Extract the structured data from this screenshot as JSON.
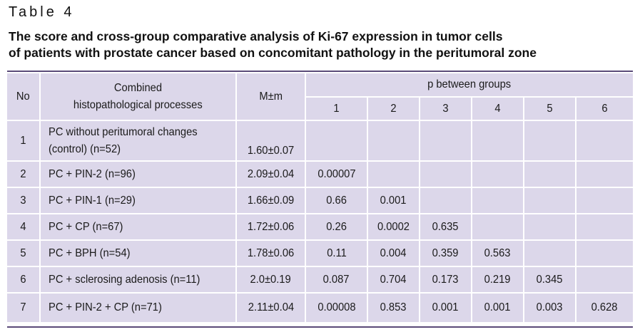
{
  "table_label": "Table 4",
  "title_line1": "The score and cross-group comparative analysis of Ki-67 expression in tumor cells",
  "title_line2": "of patients with prostate cancer based on concomitant pathology in the peritumoral zone",
  "header": {
    "no": "No",
    "processes_line1": "Combined",
    "processes_line2": "histopathological processes",
    "mean": "M±m",
    "p_between": "p between groups",
    "p_cols": [
      "1",
      "2",
      "3",
      "4",
      "5",
      "6"
    ]
  },
  "rows": [
    {
      "no": "1",
      "process_line1": "PC without peritumoral changes",
      "process_line2": "(control) (n=52)",
      "mean": "1.60±0.07",
      "p": [
        "",
        "",
        "",
        "",
        "",
        ""
      ]
    },
    {
      "no": "2",
      "process_line1": "PC + PIN-2 (n=96)",
      "mean": "2.09±0.04",
      "p": [
        "0.00007",
        "",
        "",
        "",
        "",
        ""
      ]
    },
    {
      "no": "3",
      "process_line1": "PC + PIN-1 (n=29)",
      "mean": "1.66±0.09",
      "p": [
        "0.66",
        "0.001",
        "",
        "",
        "",
        ""
      ]
    },
    {
      "no": "4",
      "process_line1": "PC + CP (n=67)",
      "mean": "1.72±0.06",
      "p": [
        "0.26",
        "0.0002",
        "0.635",
        "",
        "",
        ""
      ]
    },
    {
      "no": "5",
      "process_line1": "PC + BPH (n=54)",
      "mean": "1.78±0.06",
      "p": [
        "0.11",
        "0.004",
        "0.359",
        "0.563",
        "",
        ""
      ]
    },
    {
      "no": "6",
      "process_line1": "PC + sclerosing adenosis (n=11)",
      "mean": "2.0±0.19",
      "p": [
        "0.087",
        "0.704",
        "0.173",
        "0.219",
        "0.345",
        ""
      ]
    },
    {
      "no": "7",
      "process_line1": "PC + PIN-2 + CP (n=71)",
      "mean": "2.11±0.04",
      "p": [
        "0.00008",
        "0.853",
        "0.001",
        "0.001",
        "0.003",
        "0.628"
      ]
    }
  ]
}
